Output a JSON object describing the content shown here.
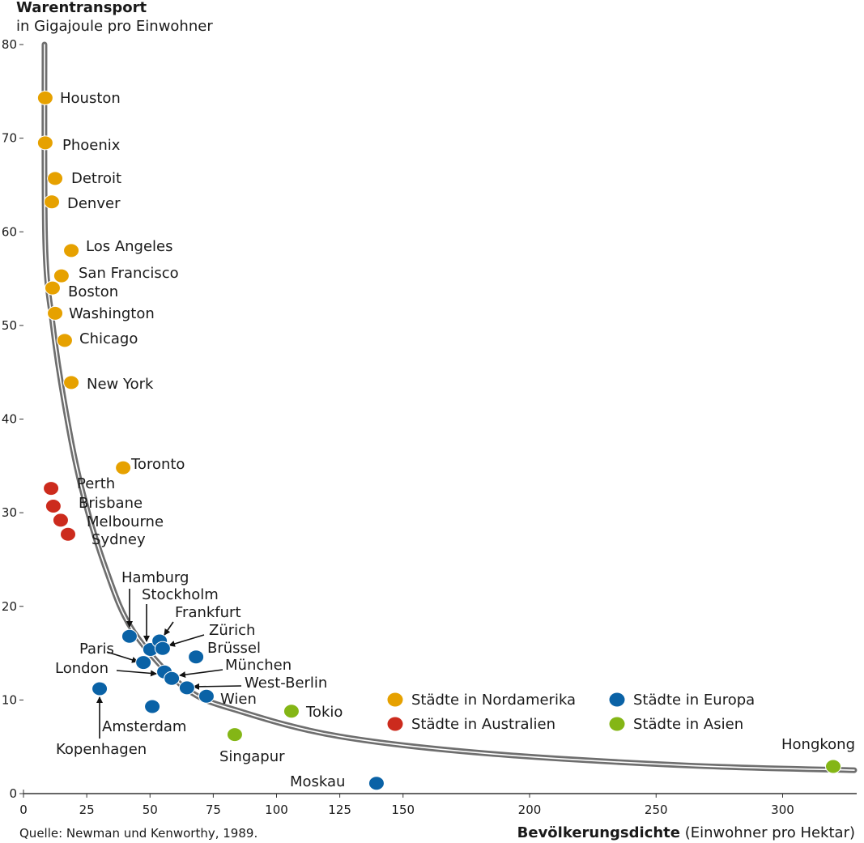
{
  "chart_data": {
    "type": "scatter",
    "ylabel_line1": "Warentransport",
    "ylabel_line2": "in Gigajoule pro Einwohner",
    "xlabel_bold": "Bevölkerungsdichte",
    "xlabel_rest": "(Einwohner pro Hektar)",
    "source": "Quelle: Newman und Kenworthy, 1989.",
    "xlim": [
      0,
      330
    ],
    "ylim": [
      0,
      80
    ],
    "xticks": [
      0,
      25,
      50,
      75,
      100,
      125,
      150,
      200,
      250,
      300
    ],
    "yticks": [
      0,
      10,
      20,
      30,
      40,
      50,
      60,
      70,
      80
    ],
    "grid": false,
    "legend_placement": "bottom-right",
    "groups": [
      {
        "key": "na",
        "name": "Städte in Nordamerika",
        "color": "#E6A100"
      },
      {
        "key": "eu",
        "name": "Städte in Europa",
        "color": "#0A62A6"
      },
      {
        "key": "au",
        "name": "Städte in Australien",
        "color": "#CC2B1D"
      },
      {
        "key": "as",
        "name": "Städte in Asien",
        "color": "#84B616"
      }
    ],
    "points": [
      {
        "name": "Houston",
        "group": "na",
        "x": 8.6,
        "y": 74.3
      },
      {
        "name": "Phoenix",
        "group": "na",
        "x": 8.6,
        "y": 69.5
      },
      {
        "name": "Detroit",
        "group": "na",
        "x": 12.5,
        "y": 65.7
      },
      {
        "name": "Denver",
        "group": "na",
        "x": 11.2,
        "y": 63.2
      },
      {
        "name": "Los Angeles",
        "group": "na",
        "x": 18.9,
        "y": 58.0
      },
      {
        "name": "San Francisco",
        "group": "na",
        "x": 15.0,
        "y": 55.3
      },
      {
        "name": "Boston",
        "group": "na",
        "x": 11.5,
        "y": 54.0
      },
      {
        "name": "Washington",
        "group": "na",
        "x": 12.5,
        "y": 51.3
      },
      {
        "name": "Chicago",
        "group": "na",
        "x": 16.3,
        "y": 48.4
      },
      {
        "name": "New York",
        "group": "na",
        "x": 18.9,
        "y": 43.9
      },
      {
        "name": "Toronto",
        "group": "na",
        "x": 39.4,
        "y": 34.8
      },
      {
        "name": "Perth",
        "group": "au",
        "x": 10.9,
        "y": 32.6
      },
      {
        "name": "Brisbane",
        "group": "au",
        "x": 11.8,
        "y": 30.7
      },
      {
        "name": "Melbourne",
        "group": "au",
        "x": 14.7,
        "y": 29.2
      },
      {
        "name": "Sydney",
        "group": "au",
        "x": 17.6,
        "y": 27.7
      },
      {
        "name": "Hamburg",
        "group": "eu",
        "x": 41.9,
        "y": 16.8
      },
      {
        "name": "Stockholm",
        "group": "eu",
        "x": 50.2,
        "y": 15.4
      },
      {
        "name": "Frankfurt",
        "group": "eu",
        "x": 53.8,
        "y": 16.3
      },
      {
        "name": "Zürich",
        "group": "eu",
        "x": 55.0,
        "y": 15.5
      },
      {
        "name": "Brüssel",
        "group": "eu",
        "x": 68.2,
        "y": 14.6
      },
      {
        "name": "Paris",
        "group": "eu",
        "x": 47.4,
        "y": 14.0
      },
      {
        "name": "London",
        "group": "eu",
        "x": 55.7,
        "y": 13.0
      },
      {
        "name": "München",
        "group": "eu",
        "x": 58.6,
        "y": 12.3
      },
      {
        "name": "West-Berlin",
        "group": "eu",
        "x": 64.6,
        "y": 11.3
      },
      {
        "name": "Wien",
        "group": "eu",
        "x": 72.3,
        "y": 10.4
      },
      {
        "name": "Kopenhagen",
        "group": "eu",
        "x": 30.1,
        "y": 11.2
      },
      {
        "name": "Amsterdam",
        "group": "eu",
        "x": 50.9,
        "y": 9.3
      },
      {
        "name": "Moskau",
        "group": "eu",
        "x": 139.5,
        "y": 1.1
      },
      {
        "name": "Tokio",
        "group": "as",
        "x": 105.9,
        "y": 8.8
      },
      {
        "name": "Singapur",
        "group": "as",
        "x": 83.5,
        "y": 6.3
      },
      {
        "name": "Hongkong",
        "group": "as",
        "x": 320.0,
        "y": 2.9
      }
    ],
    "trend_curve": [
      [
        8.3,
        80
      ],
      [
        8.6,
        58.8
      ],
      [
        11.5,
        50.2
      ],
      [
        16.3,
        41.5
      ],
      [
        22.7,
        32.9
      ],
      [
        32.3,
        24.2
      ],
      [
        43.5,
        17.3
      ],
      [
        64.3,
        11.2
      ],
      [
        86.7,
        8.7
      ],
      [
        125.1,
        6.1
      ],
      [
        182.7,
        4.3
      ],
      [
        262.7,
        3.0
      ],
      [
        328.3,
        2.5
      ]
    ]
  }
}
